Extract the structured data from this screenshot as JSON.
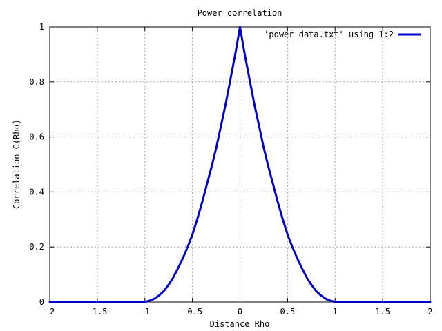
{
  "chart_data": {
    "type": "line",
    "title": "Power correlation",
    "xlabel": "Distance Rho",
    "ylabel": "Correlation C(Rho)",
    "xlim": [
      -2,
      2
    ],
    "ylim": [
      0,
      1
    ],
    "xticks": [
      -2,
      -1.5,
      -1,
      -0.5,
      0,
      0.5,
      1,
      1.5,
      2
    ],
    "xtick_labels": [
      "-2",
      "-1.5",
      "-1",
      "-0.5",
      "0",
      "0.5",
      "1",
      "1.5",
      "2"
    ],
    "yticks": [
      0,
      0.2,
      0.4,
      0.6,
      0.8,
      1
    ],
    "ytick_labels": [
      "0",
      "0.2",
      "0.4",
      "0.6",
      "0.8",
      "1"
    ],
    "grid": true,
    "legend_position": "top-right",
    "series": [
      {
        "name": "'power_data.txt' using 1:2",
        "color": "#0000cc",
        "x": [
          -2,
          -1.5,
          -1.05,
          -1,
          -0.95,
          -0.9,
          -0.85,
          -0.8,
          -0.75,
          -0.7,
          -0.65,
          -0.6,
          -0.55,
          -0.5,
          -0.45,
          -0.4,
          -0.35,
          -0.3,
          -0.25,
          -0.2,
          -0.15,
          -0.1,
          -0.05,
          0,
          0.05,
          0.1,
          0.15,
          0.2,
          0.25,
          0.3,
          0.35,
          0.4,
          0.45,
          0.5,
          0.55,
          0.6,
          0.65,
          0.7,
          0.75,
          0.8,
          0.85,
          0.9,
          0.95,
          1,
          1.05,
          1.5,
          2
        ],
        "y": [
          0,
          0,
          0,
          0.0,
          0.005,
          0.012,
          0.024,
          0.04,
          0.063,
          0.09,
          0.124,
          0.16,
          0.2,
          0.245,
          0.3,
          0.36,
          0.425,
          0.49,
          0.56,
          0.64,
          0.72,
          0.81,
          0.9,
          1.0,
          0.9,
          0.81,
          0.72,
          0.64,
          0.56,
          0.49,
          0.425,
          0.36,
          0.3,
          0.245,
          0.2,
          0.16,
          0.124,
          0.09,
          0.063,
          0.04,
          0.024,
          0.012,
          0.005,
          0.0,
          0,
          0,
          0
        ]
      }
    ]
  }
}
